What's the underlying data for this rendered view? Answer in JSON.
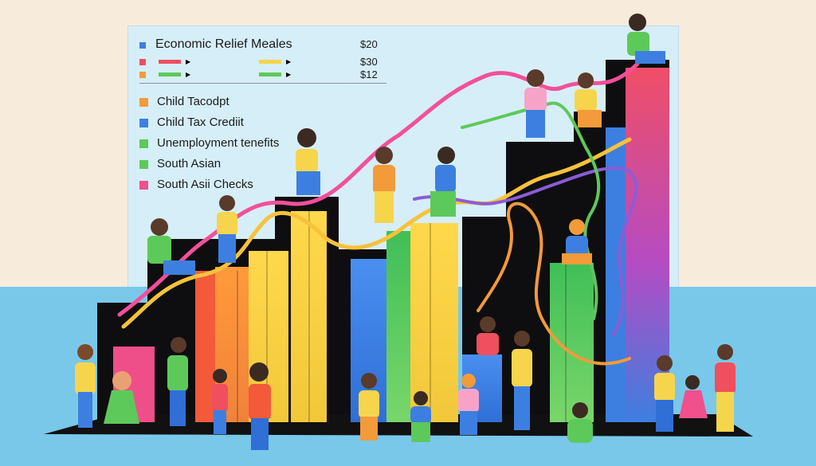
{
  "colors": {
    "cream": "#f7ecdc",
    "sky": "#d6eef8",
    "floor": "#79c8ea",
    "ink": "#111111",
    "blue": "#3d7fe0",
    "orange": "#f39a3a",
    "red": "#ef4f5e",
    "green": "#5dc95a",
    "yellow": "#f6d54c",
    "pink": "#f0508c",
    "purple": "#8b5cd6"
  },
  "legend_top": {
    "title": "Economic Relief Meales",
    "values": [
      "$20",
      "$30",
      "$12"
    ]
  },
  "legend_items": [
    {
      "label": "Child Tacodpt",
      "color": "#f39a3a"
    },
    {
      "label": "Child Tax Crediit",
      "color": "#3d7fe0"
    },
    {
      "label": "Unemployment tenefits",
      "color": "#5dc95a"
    },
    {
      "label": "South Asian",
      "color": "#5dc95a"
    },
    {
      "label": "South Asii Checks",
      "color": "#f0508c"
    }
  ],
  "icons": {
    "bullet": "square-marker-icon",
    "arrow": "play-arrow-icon"
  }
}
